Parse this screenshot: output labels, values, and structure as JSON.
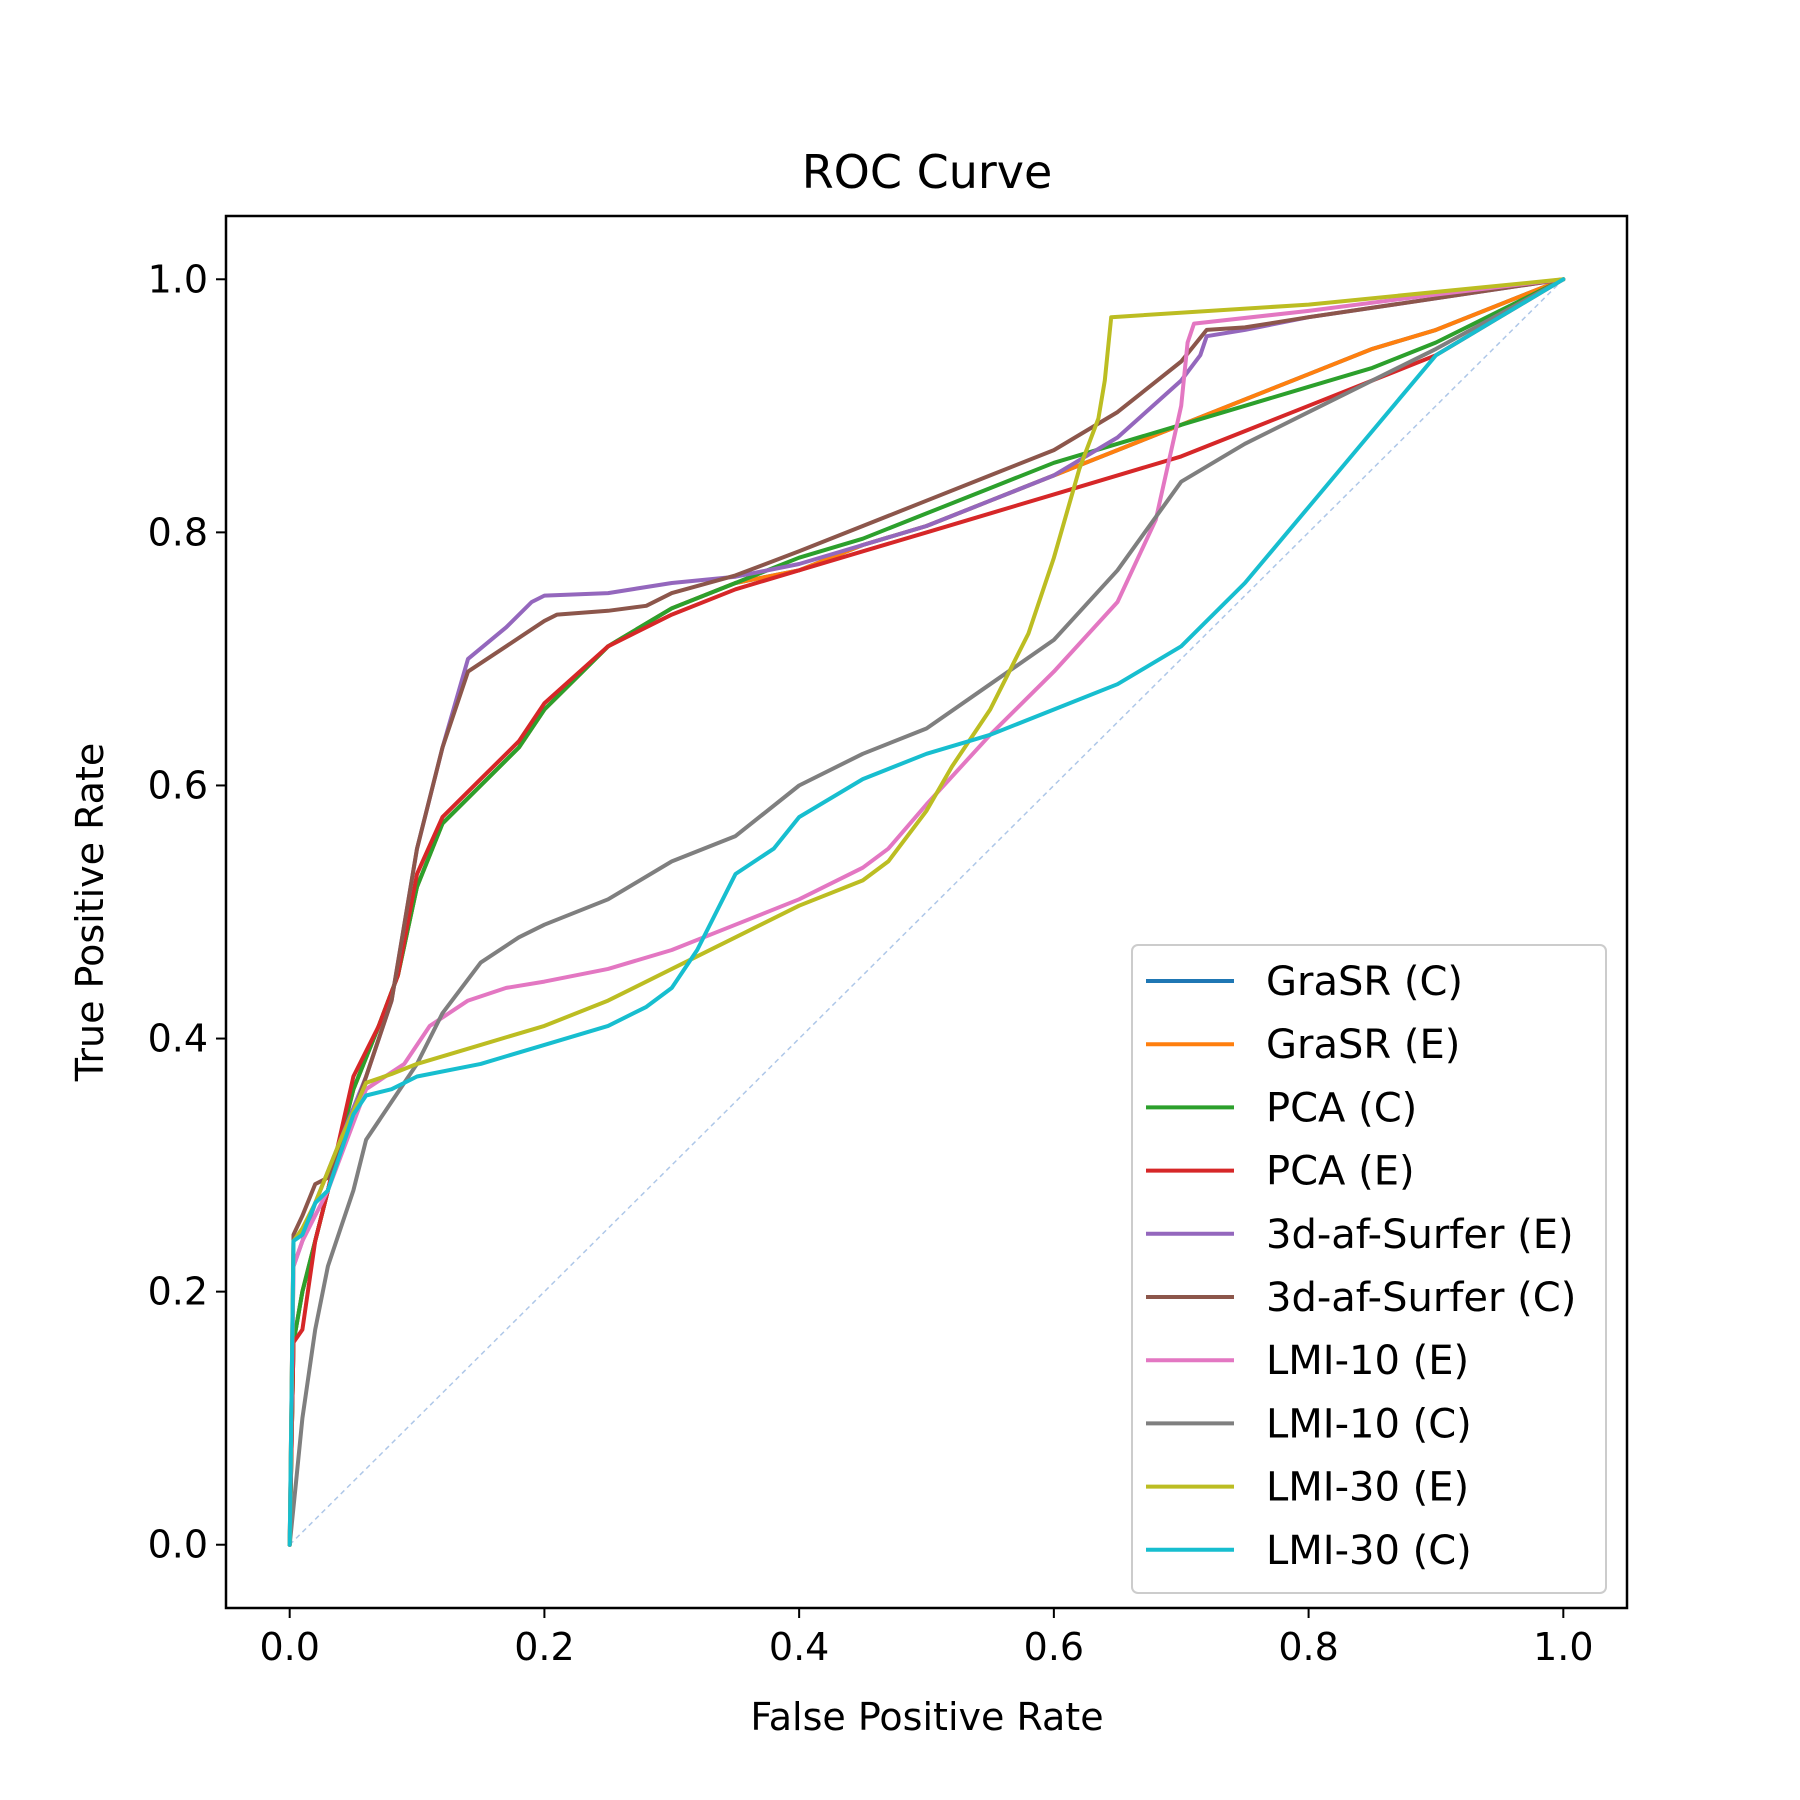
{
  "chart_data": {
    "type": "line",
    "title": "ROC Curve",
    "xlabel": "False Positive Rate",
    "ylabel": "True Positive Rate",
    "xlim": [
      -0.05,
      1.05
    ],
    "ylim": [
      -0.05,
      1.05
    ],
    "xticks": [
      "0.0",
      "0.2",
      "0.4",
      "0.6",
      "0.8",
      "1.0"
    ],
    "yticks": [
      "0.0",
      "0.2",
      "0.4",
      "0.6",
      "0.8",
      "1.0"
    ],
    "grid": false,
    "legend_position": "lower-right",
    "diagonal_reference": {
      "x": [
        0,
        1
      ],
      "y": [
        0,
        1
      ],
      "color": "#aec7e8",
      "style": "dashed"
    },
    "series": [
      {
        "name": "GraSR (C)",
        "color": "#1f77b4",
        "x": [
          0,
          0.003,
          0.01,
          0.02,
          0.03,
          0.05,
          0.07,
          0.085,
          0.1,
          0.12,
          0.15,
          0.18,
          0.2,
          0.25,
          0.3,
          0.35,
          0.4,
          0.45,
          0.5,
          0.55,
          0.6,
          0.65,
          0.7,
          0.75,
          0.8,
          0.85,
          0.9,
          0.95,
          1.0
        ],
        "y": [
          0,
          0.16,
          0.2,
          0.24,
          0.28,
          0.36,
          0.41,
          0.45,
          0.52,
          0.57,
          0.6,
          0.63,
          0.66,
          0.71,
          0.74,
          0.76,
          0.77,
          0.79,
          0.805,
          0.825,
          0.845,
          0.865,
          0.885,
          0.905,
          0.925,
          0.945,
          0.96,
          0.98,
          1.0
        ]
      },
      {
        "name": "GraSR (E)",
        "color": "#ff7f0e",
        "x": [
          0,
          0.003,
          0.01,
          0.02,
          0.03,
          0.05,
          0.07,
          0.085,
          0.1,
          0.12,
          0.15,
          0.18,
          0.2,
          0.25,
          0.3,
          0.35,
          0.4,
          0.45,
          0.5,
          0.55,
          0.6,
          0.65,
          0.7,
          0.75,
          0.8,
          0.85,
          0.9,
          0.95,
          1.0
        ],
        "y": [
          0,
          0.16,
          0.2,
          0.24,
          0.28,
          0.36,
          0.41,
          0.45,
          0.52,
          0.57,
          0.6,
          0.63,
          0.66,
          0.71,
          0.74,
          0.76,
          0.77,
          0.79,
          0.805,
          0.825,
          0.845,
          0.865,
          0.885,
          0.905,
          0.925,
          0.945,
          0.96,
          0.98,
          1.0
        ]
      },
      {
        "name": "PCA (C)",
        "color": "#2ca02c",
        "x": [
          0,
          0.003,
          0.01,
          0.02,
          0.03,
          0.05,
          0.07,
          0.085,
          0.1,
          0.12,
          0.15,
          0.18,
          0.2,
          0.25,
          0.3,
          0.35,
          0.4,
          0.45,
          0.5,
          0.55,
          0.6,
          0.65,
          0.7,
          0.75,
          0.8,
          0.85,
          0.9,
          0.95,
          1.0
        ],
        "y": [
          0,
          0.16,
          0.2,
          0.24,
          0.28,
          0.36,
          0.41,
          0.45,
          0.52,
          0.57,
          0.6,
          0.63,
          0.66,
          0.71,
          0.74,
          0.76,
          0.78,
          0.795,
          0.815,
          0.835,
          0.855,
          0.87,
          0.885,
          0.9,
          0.915,
          0.93,
          0.95,
          0.975,
          1.0
        ]
      },
      {
        "name": "PCA (E)",
        "color": "#d62728",
        "x": [
          0,
          0.003,
          0.01,
          0.02,
          0.03,
          0.05,
          0.07,
          0.085,
          0.1,
          0.12,
          0.15,
          0.18,
          0.2,
          0.25,
          0.3,
          0.35,
          0.4,
          0.45,
          0.5,
          0.55,
          0.6,
          0.65,
          0.7,
          0.75,
          0.8,
          0.85,
          0.9,
          0.95,
          1.0
        ],
        "y": [
          0,
          0.16,
          0.17,
          0.24,
          0.28,
          0.37,
          0.41,
          0.45,
          0.53,
          0.575,
          0.605,
          0.635,
          0.665,
          0.71,
          0.735,
          0.755,
          0.77,
          0.785,
          0.8,
          0.815,
          0.83,
          0.845,
          0.86,
          0.88,
          0.9,
          0.92,
          0.94,
          0.97,
          1.0
        ]
      },
      {
        "name": "3d-af-Surfer (E)",
        "color": "#9467bd",
        "x": [
          0,
          0.003,
          0.01,
          0.02,
          0.04,
          0.06,
          0.08,
          0.1,
          0.12,
          0.14,
          0.17,
          0.19,
          0.2,
          0.25,
          0.3,
          0.35,
          0.4,
          0.45,
          0.5,
          0.55,
          0.6,
          0.65,
          0.7,
          0.715,
          0.72,
          0.75,
          0.8,
          0.9,
          1.0
        ],
        "y": [
          0,
          0.22,
          0.24,
          0.27,
          0.32,
          0.37,
          0.43,
          0.55,
          0.63,
          0.7,
          0.725,
          0.745,
          0.75,
          0.752,
          0.76,
          0.765,
          0.775,
          0.79,
          0.805,
          0.825,
          0.845,
          0.875,
          0.92,
          0.94,
          0.955,
          0.96,
          0.97,
          0.985,
          1.0
        ]
      },
      {
        "name": "3d-af-Surfer (C)",
        "color": "#8c564b",
        "x": [
          0,
          0.003,
          0.01,
          0.02,
          0.03,
          0.05,
          0.08,
          0.1,
          0.12,
          0.14,
          0.17,
          0.2,
          0.21,
          0.25,
          0.28,
          0.3,
          0.35,
          0.4,
          0.45,
          0.5,
          0.55,
          0.6,
          0.65,
          0.7,
          0.72,
          0.75,
          0.8,
          0.9,
          1.0
        ],
        "y": [
          0,
          0.245,
          0.26,
          0.285,
          0.29,
          0.34,
          0.43,
          0.55,
          0.63,
          0.69,
          0.71,
          0.73,
          0.735,
          0.738,
          0.742,
          0.752,
          0.766,
          0.785,
          0.805,
          0.825,
          0.845,
          0.865,
          0.895,
          0.935,
          0.96,
          0.962,
          0.97,
          0.985,
          1.0
        ]
      },
      {
        "name": "LMI-10 (E)",
        "color": "#e377c2",
        "x": [
          0,
          0.003,
          0.01,
          0.03,
          0.06,
          0.09,
          0.11,
          0.14,
          0.17,
          0.2,
          0.25,
          0.3,
          0.35,
          0.4,
          0.45,
          0.47,
          0.5,
          0.55,
          0.6,
          0.65,
          0.68,
          0.7,
          0.705,
          0.71,
          0.8,
          0.9,
          1.0
        ],
        "y": [
          0,
          0.22,
          0.24,
          0.28,
          0.36,
          0.38,
          0.41,
          0.43,
          0.44,
          0.445,
          0.455,
          0.47,
          0.49,
          0.51,
          0.535,
          0.55,
          0.585,
          0.64,
          0.69,
          0.745,
          0.81,
          0.9,
          0.95,
          0.965,
          0.975,
          0.988,
          1.0
        ]
      },
      {
        "name": "LMI-10 (C)",
        "color": "#7f7f7f",
        "x": [
          0,
          0.005,
          0.01,
          0.02,
          0.03,
          0.04,
          0.05,
          0.06,
          0.08,
          0.1,
          0.12,
          0.15,
          0.18,
          0.2,
          0.25,
          0.3,
          0.35,
          0.4,
          0.45,
          0.5,
          0.55,
          0.6,
          0.65,
          0.7,
          0.75,
          0.8,
          0.9,
          1.0
        ],
        "y": [
          0,
          0.05,
          0.1,
          0.17,
          0.22,
          0.25,
          0.28,
          0.32,
          0.35,
          0.38,
          0.42,
          0.46,
          0.48,
          0.49,
          0.51,
          0.54,
          0.56,
          0.6,
          0.625,
          0.645,
          0.68,
          0.715,
          0.77,
          0.84,
          0.87,
          0.895,
          0.945,
          1.0
        ]
      },
      {
        "name": "LMI-30 (E)",
        "color": "#bcbd22",
        "x": [
          0,
          0.003,
          0.01,
          0.02,
          0.04,
          0.06,
          0.08,
          0.1,
          0.15,
          0.2,
          0.25,
          0.3,
          0.35,
          0.4,
          0.45,
          0.47,
          0.5,
          0.52,
          0.55,
          0.58,
          0.6,
          0.62,
          0.635,
          0.64,
          0.645,
          0.8,
          1.0
        ],
        "y": [
          0,
          0.24,
          0.25,
          0.27,
          0.32,
          0.365,
          0.372,
          0.38,
          0.395,
          0.41,
          0.43,
          0.455,
          0.48,
          0.505,
          0.525,
          0.54,
          0.58,
          0.615,
          0.66,
          0.72,
          0.78,
          0.85,
          0.89,
          0.92,
          0.97,
          0.98,
          1.0
        ]
      },
      {
        "name": "LMI-30 (C)",
        "color": "#17becf",
        "x": [
          0,
          0.003,
          0.01,
          0.02,
          0.03,
          0.05,
          0.06,
          0.08,
          0.1,
          0.15,
          0.2,
          0.25,
          0.28,
          0.3,
          0.32,
          0.35,
          0.38,
          0.4,
          0.45,
          0.5,
          0.55,
          0.6,
          0.65,
          0.7,
          0.75,
          0.8,
          0.85,
          0.9,
          0.95,
          1.0
        ],
        "y": [
          0,
          0.24,
          0.245,
          0.27,
          0.28,
          0.34,
          0.355,
          0.36,
          0.37,
          0.38,
          0.395,
          0.41,
          0.425,
          0.44,
          0.47,
          0.53,
          0.55,
          0.575,
          0.605,
          0.625,
          0.64,
          0.66,
          0.68,
          0.71,
          0.76,
          0.82,
          0.88,
          0.94,
          0.97,
          1.0
        ]
      }
    ]
  }
}
